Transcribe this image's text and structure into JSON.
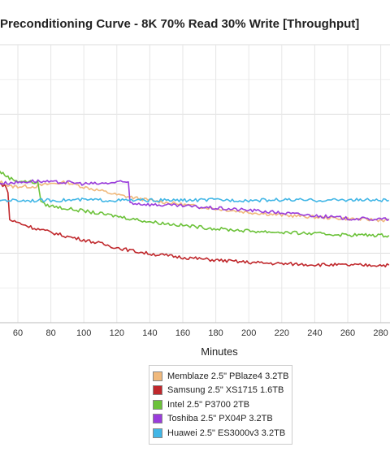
{
  "chart_data": {
    "type": "line",
    "title": "Preconditioning Curve - 8K 70% Read 30% Write [Throughput]",
    "xlabel": "Minutes",
    "x_ticks": [
      60,
      80,
      100,
      120,
      140,
      160,
      180,
      200,
      220,
      240,
      260,
      280
    ],
    "xlim": [
      45,
      285
    ],
    "grid": true,
    "legend_position": "bottom",
    "series": [
      {
        "name": "Memblaze 2.5\" PBlaze4 3.2TB",
        "color": "#f0b97c",
        "x": [
          45,
          50,
          55,
          60,
          70,
          80,
          90,
          100,
          110,
          120,
          130,
          140,
          160,
          180,
          200,
          220,
          240,
          260,
          285
        ],
        "y": [
          0.52,
          0.505,
          0.49,
          0.49,
          0.49,
          0.5,
          0.505,
          0.488,
          0.475,
          0.46,
          0.45,
          0.44,
          0.425,
          0.41,
          0.397,
          0.387,
          0.38,
          0.374,
          0.368
        ]
      },
      {
        "name": "Samsung 2.5\" XS1715 1.6TB",
        "color": "#c0282c",
        "x": [
          45,
          52,
          54,
          55,
          60,
          70,
          80,
          90,
          100,
          110,
          120,
          130,
          140,
          160,
          180,
          200,
          220,
          240,
          260,
          285
        ],
        "y": [
          0.5,
          0.495,
          0.47,
          0.37,
          0.36,
          0.34,
          0.325,
          0.31,
          0.298,
          0.285,
          0.27,
          0.258,
          0.248,
          0.235,
          0.225,
          0.217,
          0.212,
          0.209,
          0.207,
          0.207
        ]
      },
      {
        "name": "Intel 2.5\" P3700 2TB",
        "color": "#6cc23a",
        "x": [
          45,
          50,
          55,
          60,
          70,
          72,
          74,
          76,
          80,
          90,
          100,
          110,
          120,
          130,
          140,
          160,
          180,
          200,
          220,
          240,
          260,
          285
        ],
        "y": [
          0.555,
          0.54,
          0.52,
          0.51,
          0.505,
          0.505,
          0.44,
          0.425,
          0.42,
          0.41,
          0.402,
          0.392,
          0.383,
          0.373,
          0.363,
          0.35,
          0.338,
          0.33,
          0.325,
          0.32,
          0.316,
          0.314
        ]
      },
      {
        "name": "Toshiba 2.5\" PX04P 3.2TB",
        "color": "#9a3cdc",
        "x": [
          45,
          60,
          70,
          80,
          90,
          100,
          110,
          120,
          127,
          128,
          130,
          140,
          160,
          180,
          200,
          220,
          240,
          260,
          285
        ],
        "y": [
          0.5,
          0.505,
          0.51,
          0.505,
          0.505,
          0.5,
          0.5,
          0.505,
          0.505,
          0.435,
          0.43,
          0.425,
          0.42,
          0.412,
          0.405,
          0.395,
          0.385,
          0.375,
          0.372
        ]
      },
      {
        "name": "Huawei 2.5\" ES3000v3 3.2TB",
        "color": "#41b6e6",
        "x": [
          45,
          60,
          80,
          100,
          120,
          140,
          160,
          180,
          200,
          220,
          240,
          260,
          285
        ],
        "y": [
          0.442,
          0.44,
          0.44,
          0.442,
          0.44,
          0.44,
          0.44,
          0.442,
          0.44,
          0.442,
          0.44,
          0.442,
          0.44
        ]
      }
    ]
  }
}
